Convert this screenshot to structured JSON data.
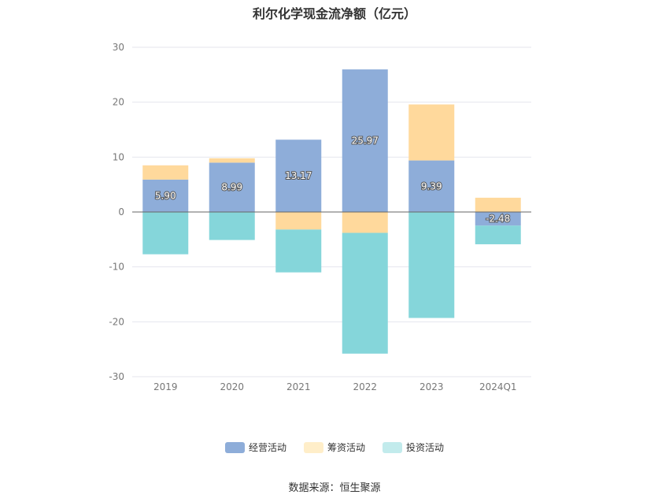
{
  "chart_data": {
    "type": "bar",
    "stacked": true,
    "title": "利尔化学现金流净额（亿元）",
    "categories": [
      "2019",
      "2020",
      "2021",
      "2022",
      "2023",
      "2024Q1"
    ],
    "series": [
      {
        "name": "经营活动",
        "color": "#8eadd9",
        "values": [
          5.9,
          8.99,
          13.17,
          25.97,
          9.39,
          -2.48
        ]
      },
      {
        "name": "筹资活动",
        "color": "#ffd99c",
        "values": [
          2.6,
          0.8,
          -3.2,
          -3.8,
          10.2,
          2.6
        ]
      },
      {
        "name": "投资活动",
        "color": "#85d6da",
        "values": [
          -7.7,
          -5.1,
          -7.8,
          -22.0,
          -19.3,
          -3.4
        ]
      }
    ],
    "data_labels": [
      "5.90",
      "8.99",
      "13.17",
      "25.97",
      "9.39",
      "-2.48"
    ],
    "yticks": [
      "30",
      "20",
      "10",
      "0",
      "-10",
      "-20",
      "-30"
    ],
    "ylim": [
      -30,
      30
    ],
    "grid": true,
    "legend_position": "bottom",
    "source": "数据来源：恒生聚源"
  }
}
